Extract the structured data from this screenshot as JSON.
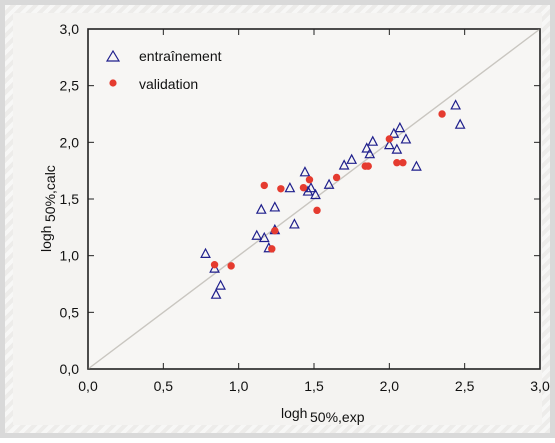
{
  "chart_data": {
    "type": "scatter",
    "x_axis": {
      "label_main": "logh",
      "label_sub": "50%,exp",
      "range": [
        0.0,
        3.0
      ],
      "ticks": [
        "0,0",
        "0,5",
        "1,0",
        "1,5",
        "2,0",
        "2,5",
        "3,0"
      ]
    },
    "y_axis": {
      "label_main": "logh",
      "label_sub": "50%,calc",
      "range": [
        0.0,
        3.0
      ],
      "ticks": [
        "0,0",
        "0,5",
        "1,0",
        "1,5",
        "2,0",
        "2,5",
        "3,0"
      ]
    },
    "reference_line": {
      "type": "identity",
      "color": "#c9c6c0"
    },
    "legend": {
      "position": "top-left",
      "items": [
        {
          "name": "entraînement",
          "marker": "triangle-open",
          "color": "#1f1f8c"
        },
        {
          "name": "validation",
          "marker": "circle-filled",
          "color": "#e53b2f"
        }
      ]
    },
    "series": [
      {
        "name": "entraînement",
        "marker": "triangle-open",
        "color": "#1f1f8c",
        "points": [
          [
            0.78,
            1.02
          ],
          [
            0.84,
            0.89
          ],
          [
            0.85,
            0.66
          ],
          [
            0.88,
            0.74
          ],
          [
            1.12,
            1.18
          ],
          [
            1.15,
            1.41
          ],
          [
            1.17,
            1.16
          ],
          [
            1.2,
            1.07
          ],
          [
            1.24,
            1.23
          ],
          [
            1.24,
            1.43
          ],
          [
            1.34,
            1.6
          ],
          [
            1.37,
            1.28
          ],
          [
            1.44,
            1.74
          ],
          [
            1.46,
            1.57
          ],
          [
            1.48,
            1.6
          ],
          [
            1.51,
            1.54
          ],
          [
            1.6,
            1.63
          ],
          [
            1.7,
            1.8
          ],
          [
            1.75,
            1.85
          ],
          [
            1.85,
            1.95
          ],
          [
            1.87,
            1.9
          ],
          [
            1.89,
            2.01
          ],
          [
            2.0,
            1.98
          ],
          [
            2.03,
            2.08
          ],
          [
            2.05,
            1.94
          ],
          [
            2.07,
            2.13
          ],
          [
            2.11,
            2.03
          ],
          [
            2.18,
            1.79
          ],
          [
            2.44,
            2.33
          ],
          [
            2.47,
            2.16
          ]
        ]
      },
      {
        "name": "validation",
        "marker": "circle-filled",
        "color": "#e53b2f",
        "points": [
          [
            0.84,
            0.92
          ],
          [
            0.95,
            0.91
          ],
          [
            1.17,
            1.62
          ],
          [
            1.22,
            1.06
          ],
          [
            1.24,
            1.22
          ],
          [
            1.28,
            1.59
          ],
          [
            1.43,
            1.6
          ],
          [
            1.47,
            1.67
          ],
          [
            1.52,
            1.4
          ],
          [
            1.65,
            1.69
          ],
          [
            1.84,
            1.79
          ],
          [
            1.86,
            1.79
          ],
          [
            2.0,
            2.03
          ],
          [
            2.05,
            1.82
          ],
          [
            2.09,
            1.82
          ],
          [
            2.35,
            2.25
          ]
        ]
      }
    ]
  }
}
